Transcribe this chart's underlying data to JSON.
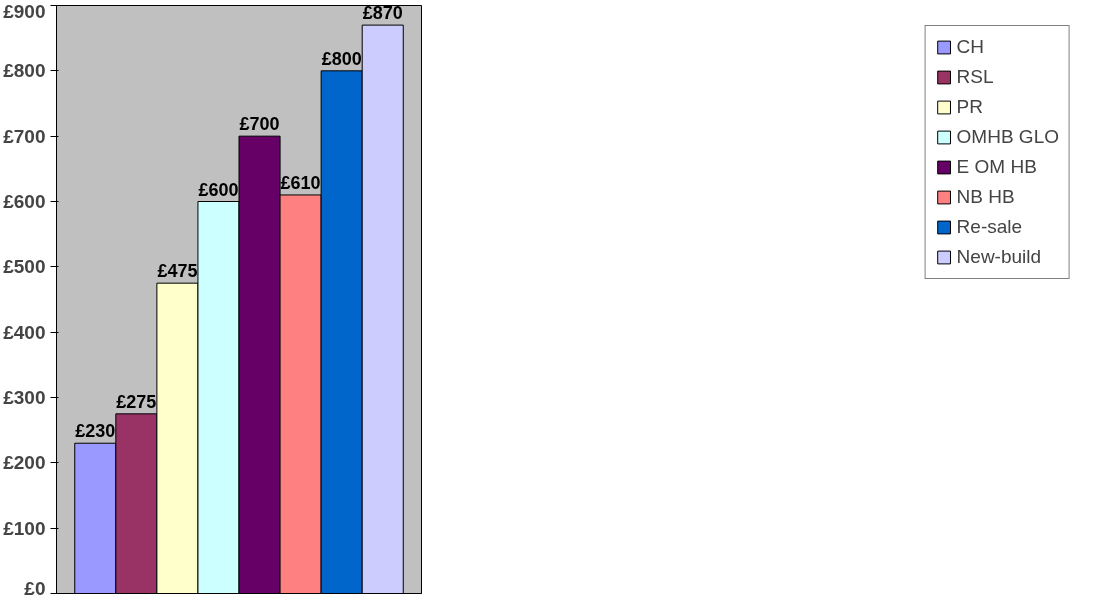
{
  "chart_data": {
    "type": "bar",
    "categories": [
      null
    ],
    "ylim": [
      0,
      900
    ],
    "yticks": [
      {
        "value": 0,
        "label": "£0"
      },
      {
        "value": 100,
        "label": "£100"
      },
      {
        "value": 200,
        "label": "£200"
      },
      {
        "value": 300,
        "label": "£300"
      },
      {
        "value": 400,
        "label": "£400"
      },
      {
        "value": 500,
        "label": "£500"
      },
      {
        "value": 600,
        "label": "£600"
      },
      {
        "value": 700,
        "label": "£700"
      },
      {
        "value": 800,
        "label": "£800"
      },
      {
        "value": 900,
        "label": "£900"
      }
    ],
    "grid": false,
    "legend": "right",
    "series": [
      {
        "name": "CH",
        "color": "#9999ff",
        "values": [
          230
        ],
        "value_labels": [
          "£230"
        ]
      },
      {
        "name": "RSL",
        "color": "#993366",
        "values": [
          275
        ],
        "value_labels": [
          "£275"
        ]
      },
      {
        "name": "PR",
        "color": "#ffffcc",
        "values": [
          475
        ],
        "value_labels": [
          "£475"
        ]
      },
      {
        "name": "OMHB GLO",
        "color": "#ccffff",
        "values": [
          600
        ],
        "value_labels": [
          "£600"
        ]
      },
      {
        "name": "E OM HB",
        "color": "#660066",
        "values": [
          700
        ],
        "value_labels": [
          "£700"
        ]
      },
      {
        "name": "NB HB",
        "color": "#ff8080",
        "values": [
          610
        ],
        "value_labels": [
          "£610"
        ]
      },
      {
        "name": "Re-sale",
        "color": "#0066cc",
        "values": [
          800
        ],
        "value_labels": [
          "£800"
        ]
      },
      {
        "name": "New-build",
        "color": "#ccccff",
        "values": [
          870
        ],
        "value_labels": [
          "£870"
        ]
      }
    ]
  }
}
